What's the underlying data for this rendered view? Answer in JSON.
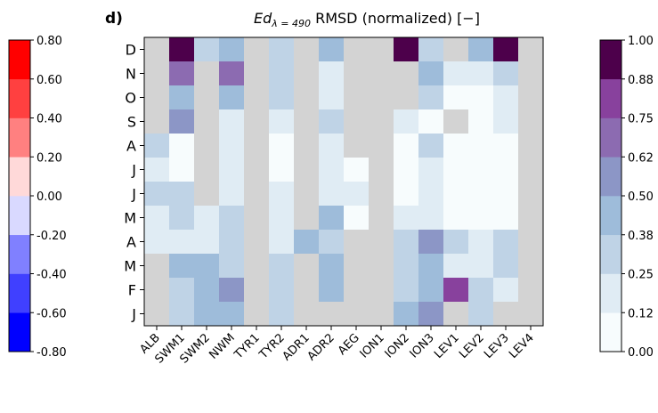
{
  "chart_data": {
    "type": "heatmap",
    "panel_label": "d)",
    "title": {
      "prefix": "Ed",
      "subscript": "λ = 490",
      "suffix": " RMSD (normalized) [−]"
    },
    "x_categories": [
      "ALB",
      "SWM1",
      "SWM2",
      "NWM",
      "TYR1",
      "TYR2",
      "ADR1",
      "ADR2",
      "AEG",
      "ION1",
      "ION2",
      "ION3",
      "LEV1",
      "LEV2",
      "LEV3",
      "LEV4"
    ],
    "y_categories": [
      "D",
      "N",
      "O",
      "S",
      "A",
      "J",
      "J",
      "M",
      "A",
      "M",
      "F",
      "J"
    ],
    "missing_color": "#d3d3d3",
    "values": [
      [
        null,
        0.88,
        0.3,
        0.42,
        null,
        0.3,
        null,
        0.42,
        null,
        null,
        1.0,
        0.3,
        null,
        0.42,
        1.0,
        null
      ],
      [
        null,
        0.66,
        null,
        0.7,
        null,
        0.3,
        null,
        0.18,
        null,
        null,
        null,
        0.42,
        0.18,
        0.18,
        0.3,
        null
      ],
      [
        null,
        0.42,
        null,
        0.42,
        null,
        0.3,
        null,
        0.18,
        null,
        null,
        null,
        0.3,
        0.05,
        0.05,
        0.18,
        null
      ],
      [
        null,
        0.58,
        null,
        0.18,
        null,
        0.18,
        null,
        0.3,
        null,
        null,
        0.18,
        0.05,
        null,
        0.05,
        0.18,
        null
      ],
      [
        0.3,
        0.05,
        null,
        0.18,
        null,
        0.05,
        null,
        0.18,
        null,
        null,
        0.05,
        0.3,
        0.05,
        0.05,
        0.05,
        null
      ],
      [
        0.18,
        0.05,
        null,
        0.18,
        null,
        0.05,
        null,
        0.18,
        0.05,
        null,
        0.05,
        0.18,
        0.05,
        0.05,
        0.05,
        null
      ],
      [
        0.3,
        0.3,
        null,
        0.18,
        null,
        0.18,
        null,
        0.18,
        0.18,
        null,
        0.05,
        0.18,
        0.05,
        0.05,
        0.05,
        null
      ],
      [
        0.18,
        0.3,
        0.18,
        0.3,
        null,
        0.18,
        null,
        0.42,
        0.05,
        null,
        0.18,
        0.18,
        0.05,
        0.05,
        0.05,
        null
      ],
      [
        0.18,
        0.18,
        0.18,
        0.3,
        null,
        0.18,
        0.42,
        0.3,
        null,
        null,
        0.3,
        0.58,
        0.3,
        0.18,
        0.3,
        null
      ],
      [
        null,
        0.42,
        0.42,
        0.3,
        null,
        0.3,
        null,
        0.42,
        null,
        null,
        0.3,
        0.42,
        0.18,
        0.18,
        0.3,
        null
      ],
      [
        null,
        0.3,
        0.42,
        0.62,
        null,
        0.3,
        null,
        0.42,
        null,
        null,
        0.3,
        0.42,
        0.8,
        0.3,
        0.18,
        null
      ],
      [
        null,
        0.3,
        0.42,
        0.42,
        null,
        0.3,
        null,
        null,
        null,
        null,
        0.42,
        0.58,
        null,
        0.3,
        null,
        null
      ]
    ],
    "right_colorbar": {
      "ticks": [
        "1.00",
        "0.88",
        "0.75",
        "0.62",
        "0.50",
        "0.38",
        "0.25",
        "0.12",
        "0.00"
      ],
      "range": [
        0,
        1
      ],
      "bins": 8,
      "colors": [
        "#f7fcfd",
        "#e0ecf4",
        "#bfd3e6",
        "#9ebcda",
        "#8c96c6",
        "#8c6bb1",
        "#88419d",
        "#4d004b"
      ]
    },
    "left_colorbar": {
      "ticks": [
        "0.80",
        "0.60",
        "0.40",
        "0.20",
        "0.00",
        "-0.20",
        "-0.40",
        "-0.60",
        "-0.80"
      ],
      "range": [
        -0.8,
        0.8
      ],
      "bins": 8,
      "colors": [
        "#0000ff",
        "#4040ff",
        "#8080ff",
        "#d9d9ff",
        "#ffd9d9",
        "#ff8080",
        "#ff4040",
        "#ff0000"
      ]
    }
  }
}
